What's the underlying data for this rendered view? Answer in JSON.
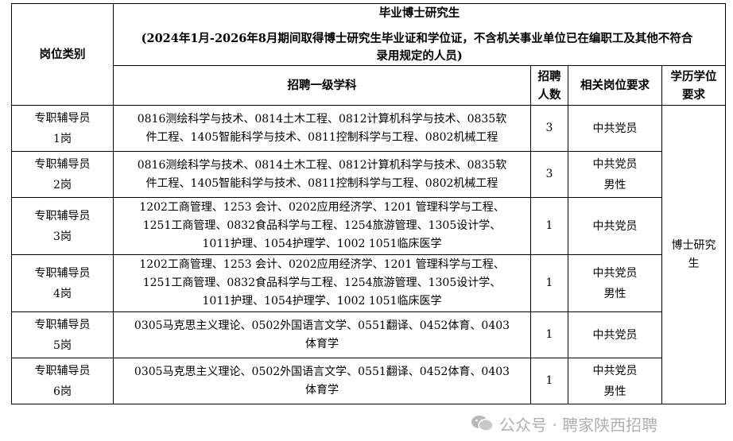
{
  "header": {
    "category": "岗位类别",
    "group_title": "毕业博士研究生",
    "group_note_1": "(2024年1月-2026年8月期间取得博士研究生毕业证和学位证，不含机关事业单位已在编职工及其他不符合",
    "group_note_2": "录用规定的人员)",
    "subjects": "招聘一级学科",
    "count_1": "招聘",
    "count_2": "人数",
    "requirement": "相关岗位要求",
    "degree_1": "学历学位",
    "degree_2": "要求"
  },
  "degree_value": "博士研究生",
  "rows": [
    {
      "post_1": "专职辅导员",
      "post_2": "1岗",
      "subjects": [
        "0816测绘科学与技术、0814土木工程、0812计算机科学与技术、0835软",
        "件工程、1405智能科学与技术、0811控制科学与工程、0802机械工程"
      ],
      "count": "3",
      "req": [
        "中共党员"
      ]
    },
    {
      "post_1": "专职辅导员",
      "post_2": "2岗",
      "subjects": [
        "0816测绘科学与技术、0814土木工程、0812计算机科学与技术、0835软",
        "件工程、1405智能科学与技术、0811控制科学与工程、0802机械工程"
      ],
      "count": "3",
      "req": [
        "中共党员",
        "男性"
      ]
    },
    {
      "post_1": "专职辅导员",
      "post_2": "3岗",
      "subjects": [
        "1202工商管理、1253 会计、0202应用经济学、1201 管理科学与工程、",
        "1251工商管理、0832食品科学与工程、1254旅游管理、1305设计学、",
        "1011护理、1054护理学、1002 1051临床医学"
      ],
      "count": "1",
      "req": [
        "中共党员"
      ]
    },
    {
      "post_1": "专职辅导员",
      "post_2": "4岗",
      "subjects": [
        "1202工商管理、1253 会计、0202应用经济学、1201 管理科学与工程、",
        "1251工商管理、0832食品科学与工程、1254旅游管理、1305设计学、",
        "1011护理、1054护理学、1002 1051临床医学"
      ],
      "count": "1",
      "req": [
        "中共党员",
        "男性"
      ]
    },
    {
      "post_1": "专职辅导员",
      "post_2": "5岗",
      "subjects": [
        "0305马克思主义理论、0502外国语言文学、0551翻译、0452体育、0403",
        "体育学"
      ],
      "count": "1",
      "req": [
        "中共党员"
      ]
    },
    {
      "post_1": "专职辅导员",
      "post_2": "6岗",
      "subjects": [
        "0305马克思主义理论、0502外国语言文学、0551翻译、0452体育、0403",
        "体育学"
      ],
      "count": "1",
      "req": [
        "中共党员",
        "男性"
      ]
    }
  ],
  "watermark": {
    "text": "公众号 · 聘家陕西招聘",
    "icon": "wechat-icon"
  }
}
